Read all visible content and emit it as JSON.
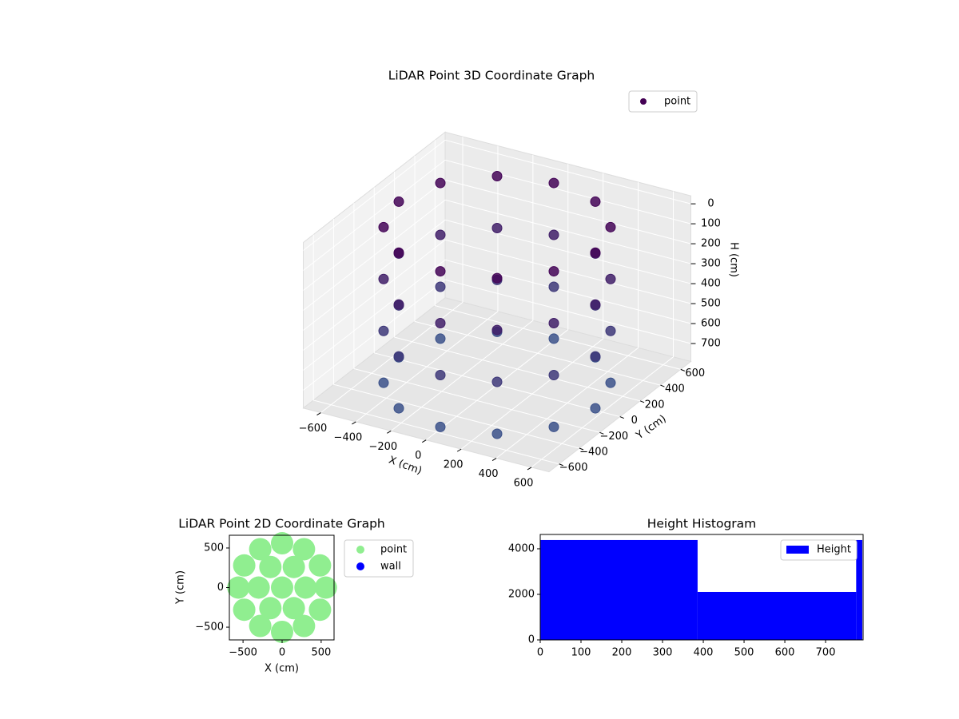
{
  "chart_data": [
    {
      "type": "scatter3d",
      "title": "LiDAR Point 3D Coordinate Graph",
      "xlabel": "X (cm)",
      "ylabel": "Y (cm)",
      "zlabel": "H (cm)",
      "series": [
        {
          "name": "point",
          "color": "#440154",
          "x": [
            560,
            485,
            280,
            0,
            -280,
            -485,
            -560,
            -485,
            -280,
            0,
            280,
            485,
            560,
            485,
            280,
            0,
            -280,
            -485,
            -560,
            -485,
            -280,
            0,
            280,
            485,
            560,
            485,
            280,
            0,
            -280,
            -485,
            -560,
            -485,
            -280,
            0,
            280,
            485,
            560,
            485,
            280,
            0,
            -280,
            -485,
            -560,
            -485,
            -280,
            0,
            280,
            485
          ],
          "y": [
            0,
            280,
            485,
            560,
            485,
            280,
            0,
            -280,
            -485,
            -560,
            -485,
            -280,
            0,
            280,
            485,
            560,
            485,
            280,
            0,
            -280,
            -485,
            -560,
            -485,
            -280,
            0,
            280,
            485,
            560,
            485,
            280,
            0,
            -280,
            -485,
            -560,
            -485,
            -280,
            0,
            280,
            485,
            560,
            485,
            280,
            0,
            -280,
            -485,
            -560,
            -485,
            -280
          ],
          "z": [
            780,
            780,
            780,
            780,
            780,
            780,
            780,
            780,
            780,
            780,
            780,
            780,
            520,
            520,
            520,
            520,
            520,
            520,
            520,
            520,
            520,
            520,
            520,
            520,
            260,
            260,
            260,
            260,
            260,
            260,
            260,
            260,
            260,
            260,
            260,
            260,
            0,
            0,
            0,
            0,
            0,
            0,
            0,
            0,
            0,
            0,
            0,
            0
          ]
        }
      ],
      "colormap": [
        "#440154",
        "#3b528b"
      ],
      "xlim": [
        -700,
        700
      ],
      "ylim": [
        -700,
        700
      ],
      "zlim": [
        -40,
        790
      ],
      "z_inverted": true,
      "xticks": [
        {
          "value": -600,
          "label": "−600"
        },
        {
          "value": -400,
          "label": "−400"
        },
        {
          "value": -200,
          "label": "−200"
        },
        0,
        200,
        400,
        600
      ],
      "yticks": [
        {
          "value": -600,
          "label": "−600"
        },
        {
          "value": -400,
          "label": "−400"
        },
        {
          "value": -200,
          "label": "−200"
        },
        0,
        200,
        400,
        600
      ],
      "zticks": [
        0,
        100,
        200,
        300,
        400,
        500,
        600,
        700
      ],
      "grid": true,
      "legend": "upper right"
    },
    {
      "type": "scatter",
      "title": "LiDAR Point 2D Coordinate Graph",
      "xlabel": "X (cm)",
      "ylabel": "Y (cm)",
      "series": [
        {
          "name": "point",
          "color": "#90ee90",
          "x": [
            560,
            485,
            280,
            0,
            -280,
            -485,
            -560,
            -485,
            -280,
            0,
            280,
            485,
            300,
            150,
            -150,
            -300,
            -150,
            150,
            0
          ],
          "y": [
            0,
            280,
            485,
            560,
            485,
            280,
            0,
            -280,
            -485,
            -560,
            -485,
            -280,
            0,
            260,
            260,
            0,
            -260,
            -260,
            0
          ]
        },
        {
          "name": "wall",
          "color": "#0000ff",
          "x": [],
          "y": []
        }
      ],
      "xlim": [
        -675,
        665
      ],
      "ylim": [
        -661,
        661
      ],
      "xticks": [
        {
          "value": -500,
          "label": "−500"
        },
        0,
        500
      ],
      "yticks": [
        {
          "value": -500,
          "label": "−500"
        },
        0,
        500
      ],
      "legend": "outside right"
    },
    {
      "type": "histogram",
      "title": "Height Histogram",
      "series": [
        {
          "name": "Height",
          "color": "#0000ff",
          "bins": [
            0,
            386,
            775,
            790
          ],
          "values": [
            4386,
            2105,
            4386
          ]
        }
      ],
      "xlim": [
        0,
        792
      ],
      "ylim": [
        0,
        4630
      ],
      "xticks": [
        0,
        100,
        200,
        300,
        400,
        500,
        600,
        700
      ],
      "yticks": [
        0,
        2000,
        4000
      ],
      "legend": "upper right"
    }
  ]
}
